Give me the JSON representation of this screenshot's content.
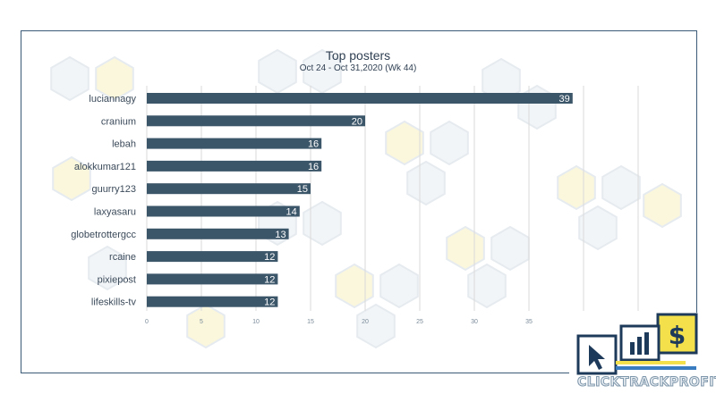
{
  "chart_data": {
    "type": "bar",
    "orientation": "horizontal",
    "title": "Top posters",
    "subtitle": "Oct 24 - Oct 31,2020 (Wk 44)",
    "categories": [
      "luciannagy",
      "cranium",
      "lebah",
      "alokkumar121",
      "guurry123",
      "laxyasaru",
      "globetrottergcc",
      "rcaine",
      "pixiepost",
      "lifeskills-tv"
    ],
    "values": [
      39,
      20,
      16,
      16,
      15,
      14,
      13,
      12,
      12,
      12
    ],
    "xlim": [
      0,
      45
    ],
    "xticks": [
      0,
      5,
      10,
      15,
      20,
      25,
      30,
      35,
      40,
      45
    ],
    "grid": true,
    "legend": "none",
    "bar_color": "#3b5569",
    "label_color": "#ffffff"
  },
  "watermark": {
    "description_icons": [
      "cursor-icon",
      "bar-chart-icon",
      "dollar-icon"
    ]
  },
  "logo": {
    "text": "CLICKTRACKPROFIT",
    "icons": [
      "cursor-icon",
      "bar-chart-icon",
      "dollar-icon"
    ],
    "colors": {
      "navy": "#1e3a5a",
      "blue": "#3a7cc0",
      "yellow": "#f3e04a"
    }
  }
}
